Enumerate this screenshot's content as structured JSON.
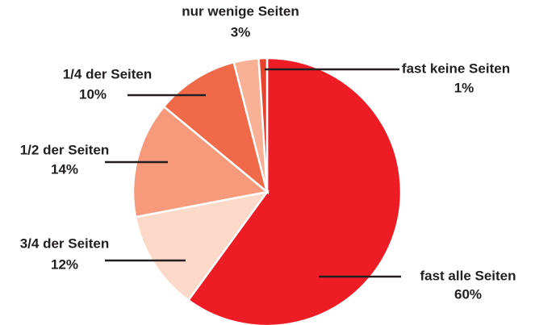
{
  "chart_data": {
    "type": "pie",
    "categories": [
      "fast alle Seiten",
      "3/4 der Seiten",
      "1/2 der Seiten",
      "1/4 der Seiten",
      "nur wenige Seiten",
      "fast keine Seiten"
    ],
    "values": [
      60,
      12,
      14,
      10,
      3,
      1
    ],
    "value_labels": [
      "60%",
      "12%",
      "14%",
      "10%",
      "3%",
      "1%"
    ],
    "colors": [
      "#ee1c25",
      "#fcd9c8",
      "#f69a7b",
      "#f06a4a",
      "#f8b194",
      "#e8412c"
    ]
  }
}
